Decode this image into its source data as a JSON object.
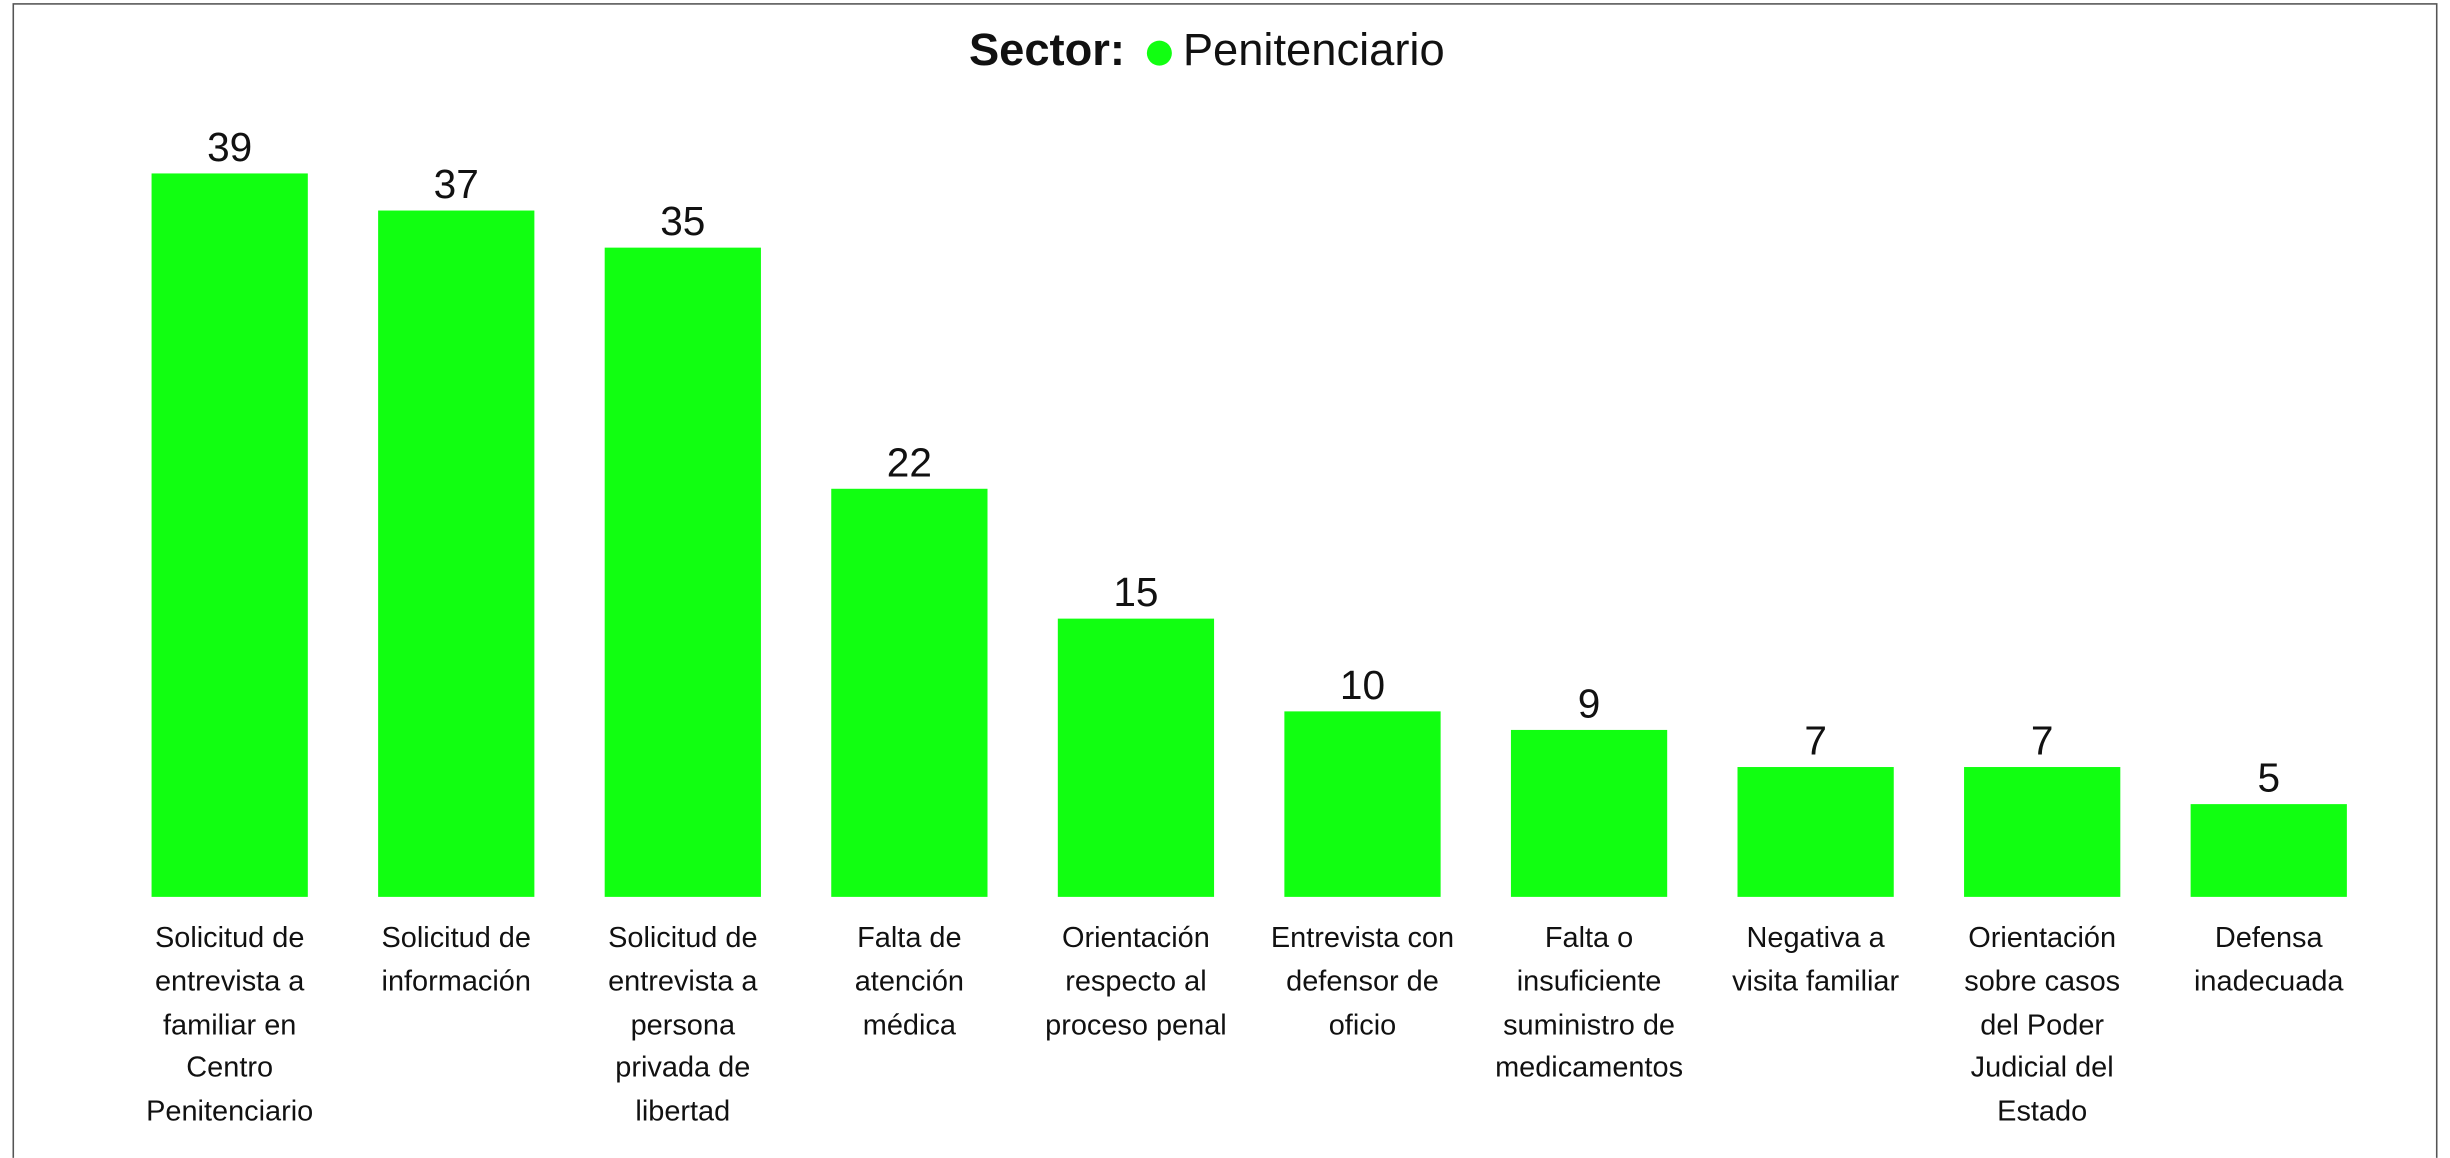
{
  "chart_data": {
    "type": "bar",
    "title": "Sector:",
    "series": [
      {
        "name": "Penitenciario",
        "color": "#11ff11",
        "values": [
          39,
          37,
          35,
          22,
          15,
          10,
          9,
          7,
          7,
          5
        ]
      }
    ],
    "categories": [
      "Solicitud de\nentrevista a\nfamiliar en\nCentro\nPenitenciario",
      "Solicitud de\ninformación",
      "Solicitud de\nentrevista a\npersona\nprivada de\nlibertad",
      "Falta de\natención\nmédica",
      "Orientación\nrespecto al\nproceso penal",
      "Entrevista con\ndefensor de\noficio",
      "Falta o\ninsuficiente\nsuministro de\nmedicamentos",
      "Negativa a\nvisita familiar",
      "Orientación\nsobre casos\ndel Poder\nJudicial del\nEstado",
      "Defensa\ninadecuada"
    ]
  }
}
